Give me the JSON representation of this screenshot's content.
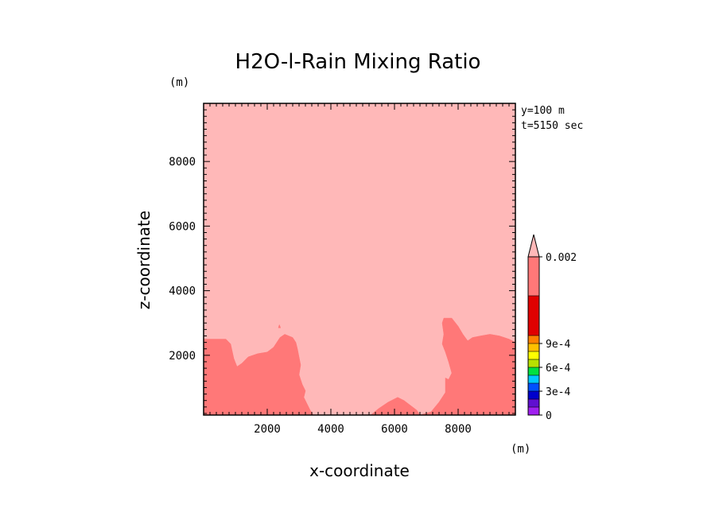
{
  "chart_data": {
    "type": "heatmap",
    "title": "H2O-l-Rain Mixing Ratio",
    "xlabel": "x-coordinate",
    "ylabel": "z-coordinate",
    "x_unit": "(m)",
    "y_unit": "(m)",
    "annotations": [
      "y=100 m",
      "t=5150 sec"
    ],
    "xlim": [
      0,
      9800
    ],
    "ylim": [
      150,
      9800
    ],
    "x_ticks": [
      2000,
      4000,
      6000,
      8000
    ],
    "y_ticks": [
      2000,
      4000,
      6000,
      8000
    ],
    "x_tick_labels": [
      "2000",
      "4000",
      "6000",
      "8000"
    ],
    "y_tick_labels": [
      "2000",
      "4000",
      "6000",
      "8000"
    ],
    "background_level_color": "#ffb8b8",
    "regions": [
      {
        "name": "lower-left high-value region",
        "color": "#ff7878",
        "points": [
          [
            0,
            150
          ],
          [
            0,
            2500
          ],
          [
            700,
            2500
          ],
          [
            850,
            2350
          ],
          [
            950,
            1900
          ],
          [
            1050,
            1650
          ],
          [
            1200,
            1750
          ],
          [
            1400,
            1950
          ],
          [
            1700,
            2050
          ],
          [
            2000,
            2100
          ],
          [
            2200,
            2250
          ],
          [
            2400,
            2550
          ],
          [
            2550,
            2650
          ],
          [
            2800,
            2550
          ],
          [
            2900,
            2400
          ],
          [
            2950,
            2200
          ],
          [
            3000,
            1950
          ],
          [
            3050,
            1700
          ],
          [
            3000,
            1400
          ],
          [
            3100,
            1100
          ],
          [
            3200,
            900
          ],
          [
            3150,
            700
          ],
          [
            3250,
            500
          ],
          [
            3350,
            300
          ],
          [
            3450,
            150
          ]
        ]
      },
      {
        "name": "lower-right high-value region",
        "color": "#ff7878",
        "points": [
          [
            6800,
            150
          ],
          [
            7150,
            250
          ],
          [
            7400,
            550
          ],
          [
            7600,
            850
          ],
          [
            7600,
            1100
          ],
          [
            7600,
            1300
          ],
          [
            7700,
            1250
          ],
          [
            7800,
            1450
          ],
          [
            7700,
            1800
          ],
          [
            7600,
            2100
          ],
          [
            7500,
            2350
          ],
          [
            7550,
            2650
          ],
          [
            7500,
            3000
          ],
          [
            7550,
            3150
          ],
          [
            7800,
            3150
          ],
          [
            8000,
            2900
          ],
          [
            8150,
            2650
          ],
          [
            8300,
            2450
          ],
          [
            8450,
            2550
          ],
          [
            8700,
            2600
          ],
          [
            9000,
            2650
          ],
          [
            9300,
            2600
          ],
          [
            9600,
            2500
          ],
          [
            9800,
            2400
          ],
          [
            9800,
            150
          ]
        ]
      },
      {
        "name": "lower-center high-value region",
        "color": "#ff7878",
        "points": [
          [
            5250,
            150
          ],
          [
            5500,
            350
          ],
          [
            5800,
            550
          ],
          [
            6100,
            700
          ],
          [
            6300,
            600
          ],
          [
            6500,
            450
          ],
          [
            6700,
            300
          ],
          [
            6800,
            150
          ]
        ]
      },
      {
        "name": "small speck near x=2400",
        "color": "#ff7878",
        "points": [
          [
            2350,
            2850
          ],
          [
            2380,
            2950
          ],
          [
            2420,
            2850
          ]
        ]
      }
    ],
    "colorbar": {
      "levels": [
        0,
        0.0001,
        0.0002,
        0.0003,
        0.0004,
        0.0005,
        0.0006,
        0.0007,
        0.0008,
        0.0009,
        0.001,
        0.0015,
        0.002
      ],
      "colors": [
        "#a020f0",
        "#6010d0",
        "#0000cc",
        "#0050ff",
        "#00c8ff",
        "#00e040",
        "#b8e000",
        "#ffff00",
        "#ffc000",
        "#ff8000",
        "#e00000",
        "#ff7878",
        "#ffb8b8"
      ],
      "tick_labels": [
        "0.002",
        "9e-4",
        "6e-4",
        "3e-4",
        "0"
      ],
      "tick_values": [
        0.002,
        0.0009,
        0.0006,
        0.0003,
        0
      ],
      "extend": "max"
    }
  }
}
